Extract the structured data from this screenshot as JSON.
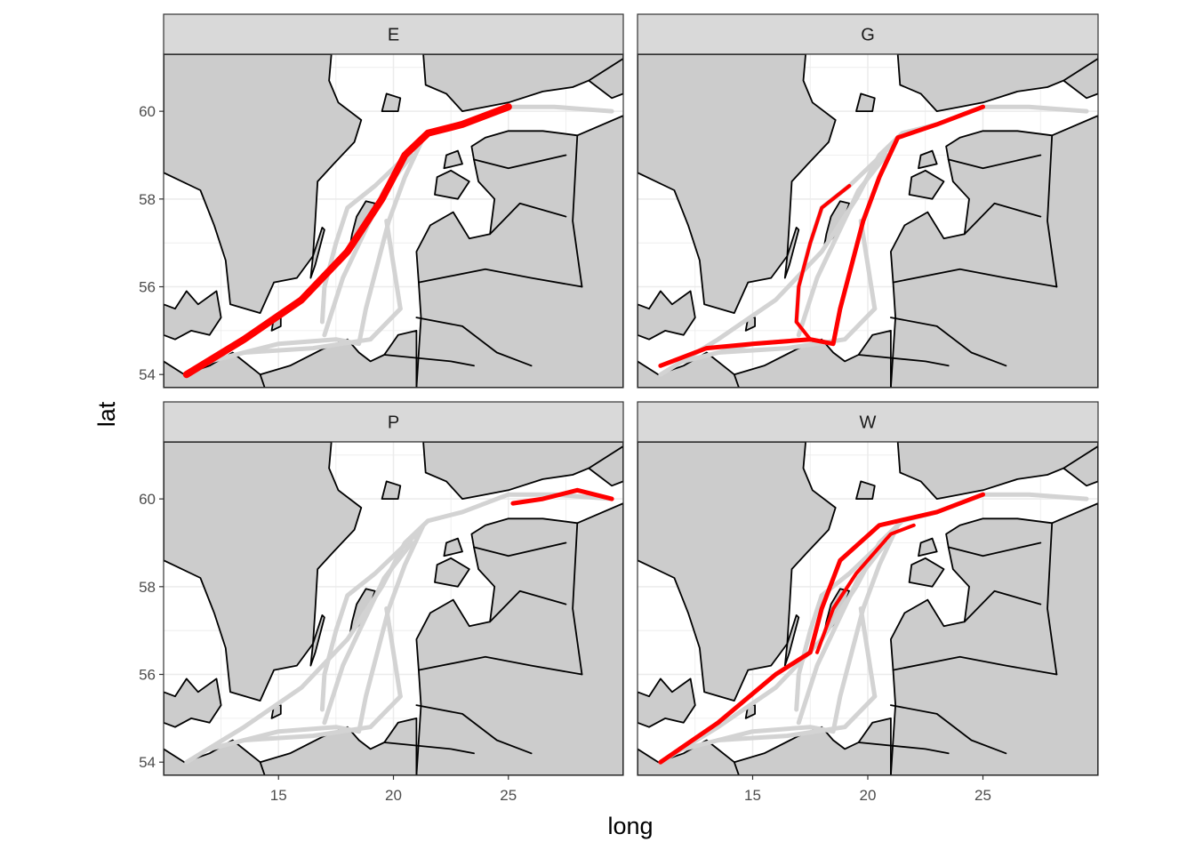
{
  "figure": {
    "xlabel": "long",
    "ylabel": "lat",
    "panels": [
      {
        "id": "panel-E",
        "label": "E"
      },
      {
        "id": "panel-G",
        "label": "G"
      },
      {
        "id": "panel-P",
        "label": "P"
      },
      {
        "id": "panel-W",
        "label": "W"
      }
    ]
  },
  "colors": {
    "land": "#cccccc",
    "sea": "#ffffff",
    "coastline": "#000000",
    "strip_bg": "#d9d9d9",
    "grid": "#ebebeb",
    "all_tracks": "#d3d3d3",
    "highlight_track": "#ff0000"
  },
  "chart_data": {
    "type": "map-facets",
    "facet_variable_levels": [
      "E",
      "G",
      "P",
      "W"
    ],
    "x_axis": {
      "label": "long",
      "ticks": [
        15,
        20,
        25
      ],
      "range": [
        10,
        30
      ]
    },
    "y_axis": {
      "label": "lat",
      "ticks": [
        54,
        56,
        58,
        60
      ],
      "range": [
        53.7,
        61.3
      ]
    },
    "grid": true,
    "background_tracks_color": "grey",
    "highlight_color": "red",
    "highlight_tracks": {
      "E": [
        [
          11.0,
          54.0
        ],
        [
          13.5,
          54.8
        ],
        [
          16.0,
          55.7
        ],
        [
          18.0,
          56.8
        ],
        [
          19.5,
          58.0
        ],
        [
          20.5,
          59.0
        ],
        [
          21.5,
          59.5
        ],
        [
          23.0,
          59.7
        ],
        [
          25.0,
          60.1
        ]
      ],
      "G": [
        [
          11.0,
          54.2
        ],
        [
          13.0,
          54.6
        ],
        [
          15.0,
          54.7
        ],
        [
          17.5,
          54.8
        ],
        [
          18.5,
          54.7
        ],
        [
          18.8,
          55.5
        ],
        [
          19.3,
          56.5
        ],
        [
          19.8,
          57.5
        ],
        [
          20.5,
          58.5
        ],
        [
          21.3,
          59.4
        ],
        [
          23.0,
          59.7
        ],
        [
          25.0,
          60.1
        ]
      ],
      "G_branch": [
        [
          17.5,
          54.8
        ],
        [
          16.9,
          55.2
        ],
        [
          17.0,
          56.0
        ],
        [
          17.5,
          57.0
        ],
        [
          18.0,
          57.8
        ],
        [
          19.2,
          58.3
        ]
      ],
      "P": [
        [
          25.2,
          59.9
        ],
        [
          26.5,
          60.0
        ],
        [
          28.0,
          60.2
        ],
        [
          29.5,
          60.0
        ]
      ],
      "W": [
        [
          11.0,
          54.0
        ],
        [
          13.5,
          54.9
        ],
        [
          16.0,
          56.0
        ],
        [
          17.5,
          56.5
        ],
        [
          18.0,
          57.5
        ],
        [
          18.8,
          58.6
        ],
        [
          20.5,
          59.4
        ],
        [
          23.0,
          59.7
        ],
        [
          25.0,
          60.1
        ]
      ],
      "W_branch": [
        [
          17.8,
          56.5
        ],
        [
          18.5,
          57.5
        ],
        [
          19.5,
          58.3
        ],
        [
          21.0,
          59.2
        ],
        [
          22.0,
          59.4
        ]
      ]
    },
    "background_tracks": [
      [
        [
          11.0,
          54.0
        ],
        [
          13.5,
          54.8
        ],
        [
          16.0,
          55.7
        ],
        [
          18.0,
          56.8
        ],
        [
          19.5,
          58.0
        ],
        [
          20.5,
          59.0
        ],
        [
          21.5,
          59.5
        ],
        [
          23.0,
          59.7
        ],
        [
          25.0,
          60.1
        ],
        [
          27.0,
          60.1
        ],
        [
          29.5,
          60.0
        ]
      ],
      [
        [
          12.0,
          54.3
        ],
        [
          15.0,
          54.7
        ],
        [
          17.5,
          54.8
        ],
        [
          18.5,
          54.7
        ],
        [
          18.8,
          55.5
        ],
        [
          19.3,
          56.5
        ],
        [
          19.8,
          57.5
        ],
        [
          20.5,
          58.5
        ],
        [
          21.3,
          59.4
        ]
      ],
      [
        [
          16.9,
          55.2
        ],
        [
          17.0,
          56.0
        ],
        [
          17.5,
          57.0
        ],
        [
          18.0,
          57.8
        ],
        [
          19.2,
          58.3
        ],
        [
          21.0,
          59.2
        ]
      ],
      [
        [
          13.5,
          54.5
        ],
        [
          16.5,
          54.6
        ],
        [
          19.0,
          54.8
        ],
        [
          20.3,
          55.5
        ]
      ],
      [
        [
          20.3,
          55.5
        ],
        [
          20.0,
          56.5
        ],
        [
          19.7,
          57.5
        ]
      ],
      [
        [
          17.0,
          54.9
        ],
        [
          17.8,
          56.2
        ],
        [
          18.7,
          57.2
        ],
        [
          19.6,
          58.2
        ],
        [
          20.8,
          59.0
        ]
      ]
    ]
  }
}
